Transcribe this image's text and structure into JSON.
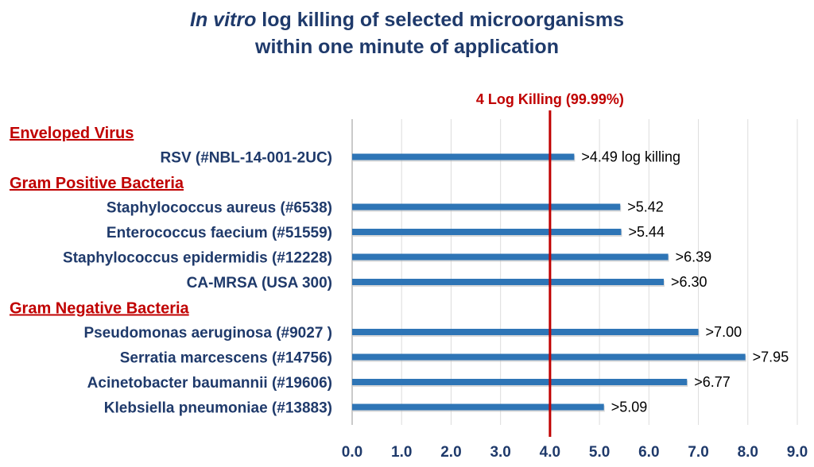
{
  "title_line1_italic": "In vitro",
  "title_line1_rest": " log killing of selected microorganisms",
  "title_line2": "within one minute of application",
  "chart_data": {
    "type": "bar",
    "orientation": "horizontal",
    "groups": [
      {
        "label": "Enveloped Virus",
        "items": [
          {
            "name": "RSV (#NBL-14-001-2UC)",
            "value": 4.49,
            "label": ">4.49 log killing"
          }
        ]
      },
      {
        "label": "Gram Positive Bacteria",
        "items": [
          {
            "name": "Staphylococcus aureus (#6538)",
            "value": 5.42,
            "label": ">5.42"
          },
          {
            "name": "Enterococcus faecium (#51559)",
            "value": 5.44,
            "label": ">5.44"
          },
          {
            "name": "Staphylococcus epidermidis (#12228)",
            "value": 6.39,
            "label": ">6.39"
          },
          {
            "name": "CA-MRSA (USA 300)",
            "value": 6.3,
            "label": ">6.30"
          }
        ]
      },
      {
        "label": "Gram Negative Bacteria",
        "items": [
          {
            "name": "Pseudomonas aeruginosa (#9027 )",
            "value": 7.0,
            "label": ">7.00"
          },
          {
            "name": "Serratia marcescens (#14756)",
            "value": 7.95,
            "label": ">7.95"
          },
          {
            "name": "Acinetobacter baumannii (#19606)",
            "value": 6.77,
            "label": ">6.77"
          },
          {
            "name": "Klebsiella pneumoniae (#13883)",
            "value": 5.09,
            "label": ">5.09"
          }
        ]
      }
    ],
    "xlim": [
      0,
      9
    ],
    "xticks": [
      "0.0",
      "1.0",
      "2.0",
      "3.0",
      "4.0",
      "5.0",
      "6.0",
      "7.0",
      "8.0",
      "9.0"
    ],
    "reference_line": {
      "value": 4.0,
      "label": "4 Log Killing (99.99%)",
      "color": "#c00000"
    },
    "bar_color": "#2e75b6",
    "grid": true
  }
}
